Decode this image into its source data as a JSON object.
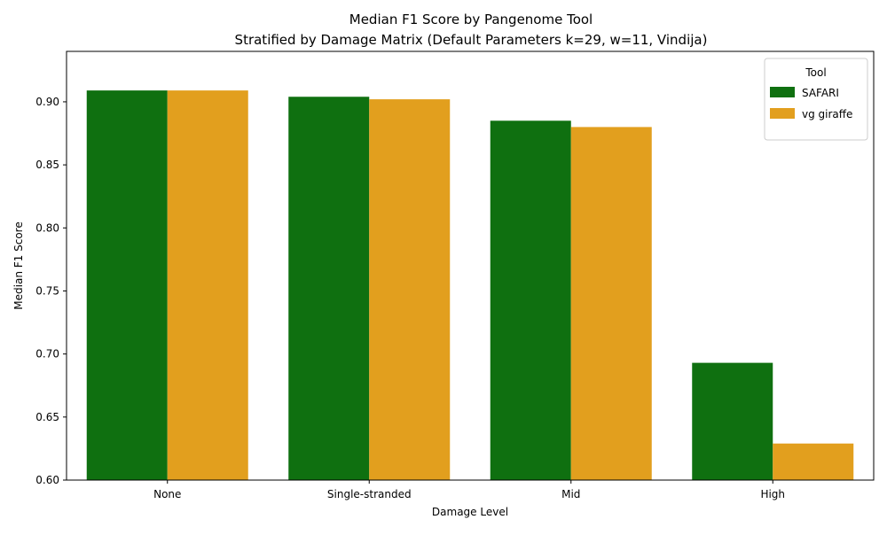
{
  "chart_data": {
    "type": "bar",
    "title": "Median F1 Score by Pangenome Tool",
    "subtitle": "Stratified by Damage Matrix (Default Parameters k=29, w=11, Vindija)",
    "xlabel": "Damage Level",
    "ylabel": "Median F1 Score",
    "categories": [
      "None",
      "Single-stranded",
      "Mid",
      "High"
    ],
    "series": [
      {
        "name": "SAFARI",
        "color": "#0f7010",
        "values": [
          0.909,
          0.904,
          0.885,
          0.693
        ]
      },
      {
        "name": "vg giraffe",
        "color": "#e29f1e",
        "values": [
          0.909,
          0.902,
          0.88,
          0.629
        ]
      }
    ],
    "ylim": [
      0.6,
      0.94
    ],
    "yticks": [
      "0.60",
      "0.65",
      "0.70",
      "0.75",
      "0.80",
      "0.85",
      "0.90"
    ],
    "grid": false,
    "legend": {
      "title": "Tool",
      "placement": "top-right"
    }
  }
}
